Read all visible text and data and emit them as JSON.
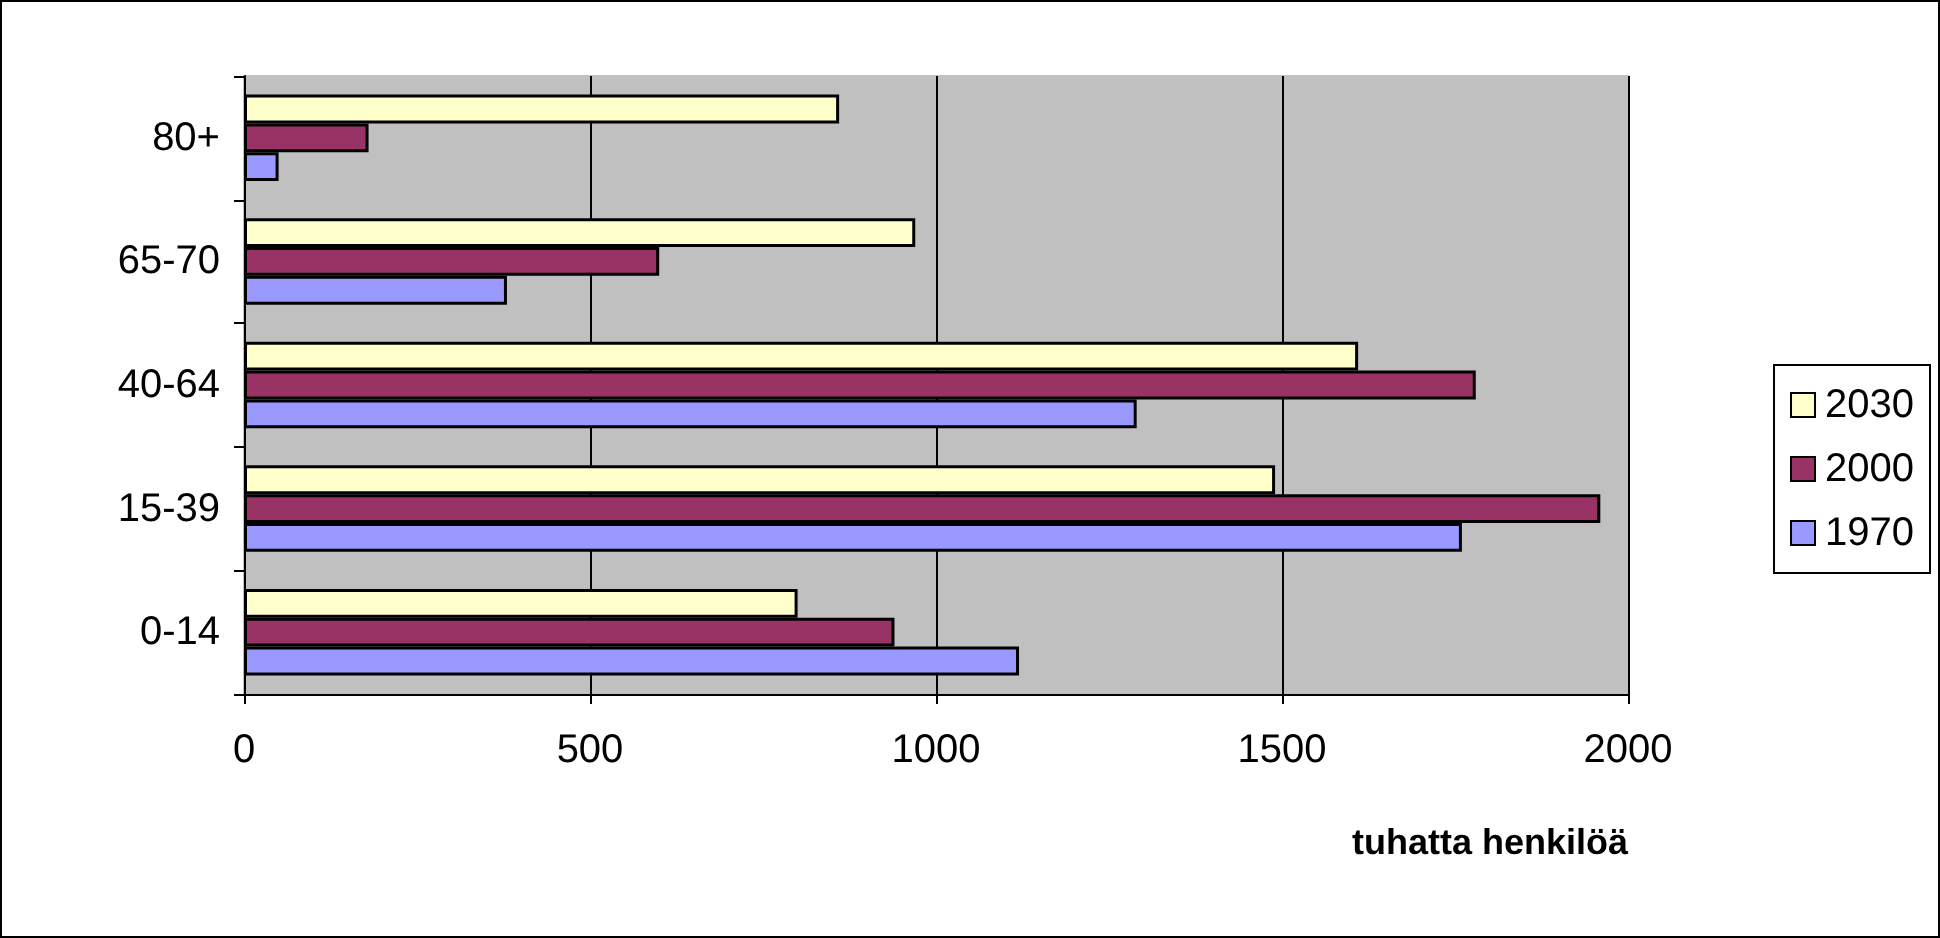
{
  "chart_data": {
    "type": "bar",
    "orientation": "horizontal",
    "xlabel": "tuhatta henkilöä",
    "categories": [
      "80+",
      "65-70",
      "40-64",
      "15-39",
      "0-14"
    ],
    "series": [
      {
        "name": "2030",
        "color": "#ffffcc",
        "values": [
          860,
          970,
          1610,
          1490,
          800
        ]
      },
      {
        "name": "2000",
        "color": "#993366",
        "values": [
          180,
          600,
          1780,
          1960,
          940
        ]
      },
      {
        "name": "1970",
        "color": "#9999ff",
        "values": [
          50,
          380,
          1290,
          1760,
          1120
        ]
      }
    ],
    "xlim": [
      0,
      2000
    ],
    "xticks": [
      0,
      500,
      1000,
      1500,
      2000
    ],
    "grid": "x",
    "legend": "right"
  }
}
